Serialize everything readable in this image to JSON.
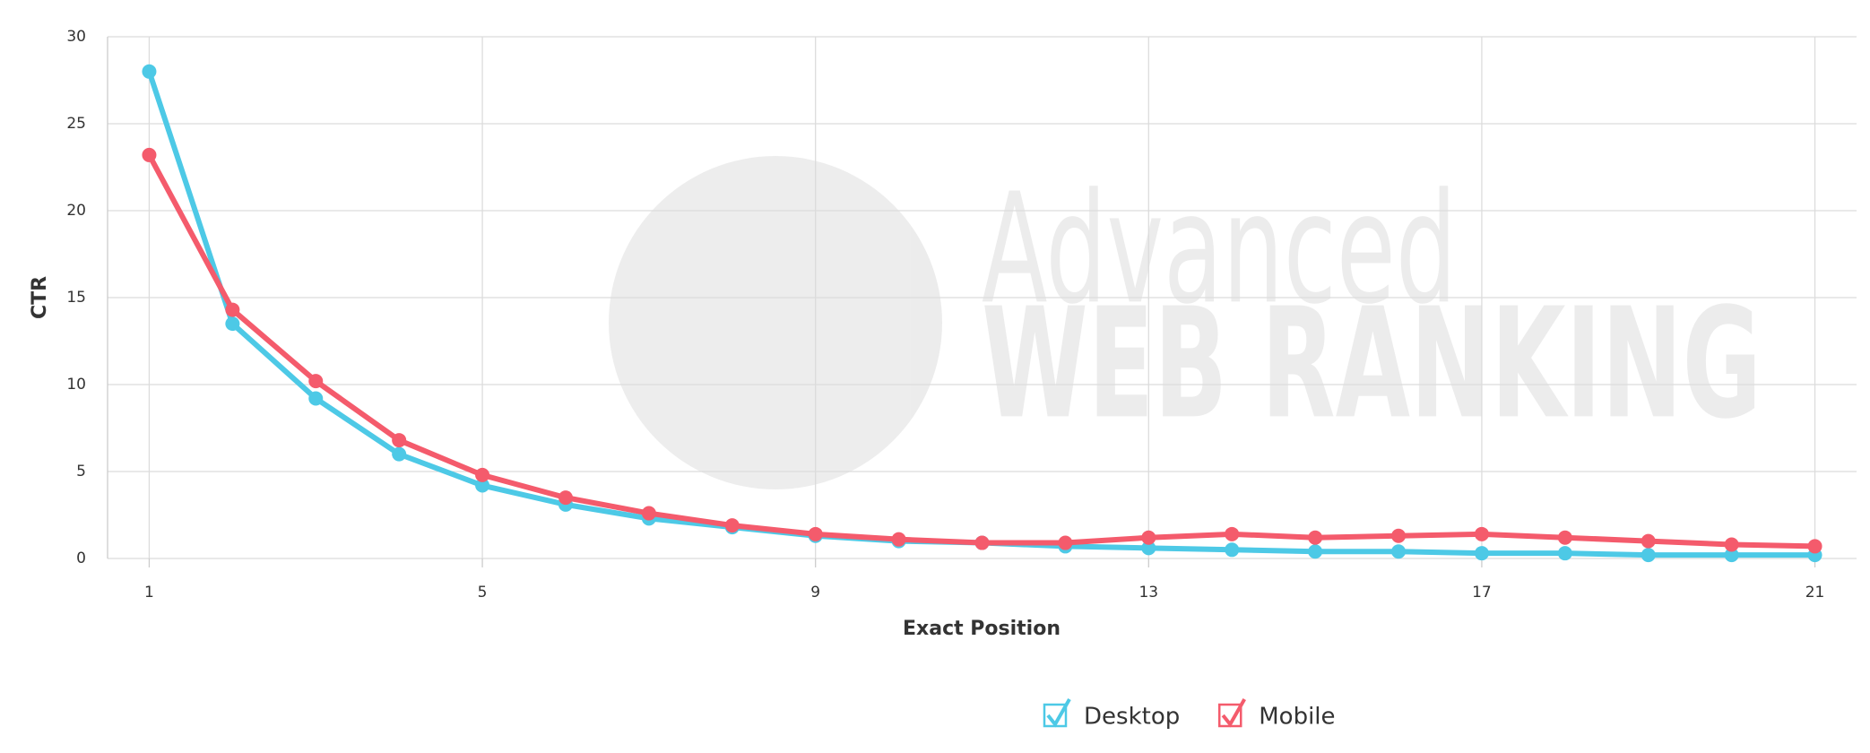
{
  "chart_data": {
    "type": "line",
    "x": [
      1,
      2,
      3,
      4,
      5,
      6,
      7,
      8,
      9,
      10,
      11,
      12,
      13,
      14,
      15,
      16,
      17,
      18,
      19,
      20,
      21
    ],
    "series": [
      {
        "name": "Desktop",
        "color": "#4dc9e6",
        "values": [
          28,
          13.5,
          9.2,
          6.0,
          4.2,
          3.1,
          2.3,
          1.8,
          1.3,
          1.0,
          0.9,
          0.7,
          0.6,
          0.5,
          0.4,
          0.4,
          0.3,
          0.3,
          0.2,
          0.2,
          0.2
        ]
      },
      {
        "name": "Mobile",
        "color": "#f45b6c",
        "values": [
          23.2,
          14.3,
          10.2,
          6.8,
          4.8,
          3.5,
          2.6,
          1.9,
          1.4,
          1.1,
          0.9,
          0.9,
          1.2,
          1.4,
          1.2,
          1.3,
          1.4,
          1.2,
          1.0,
          0.8,
          0.7
        ]
      }
    ],
    "xlim": [
      0.5,
      21.5
    ],
    "xticks": [
      1,
      5,
      9,
      13,
      17,
      21
    ],
    "ylim": [
      0,
      30
    ],
    "yticks": [
      0,
      5,
      10,
      15,
      20,
      25,
      30
    ],
    "xlabel": "Exact Position",
    "ylabel": "CTR",
    "grid": true,
    "watermark": [
      "Advanced",
      "WEB RANKING"
    ]
  }
}
